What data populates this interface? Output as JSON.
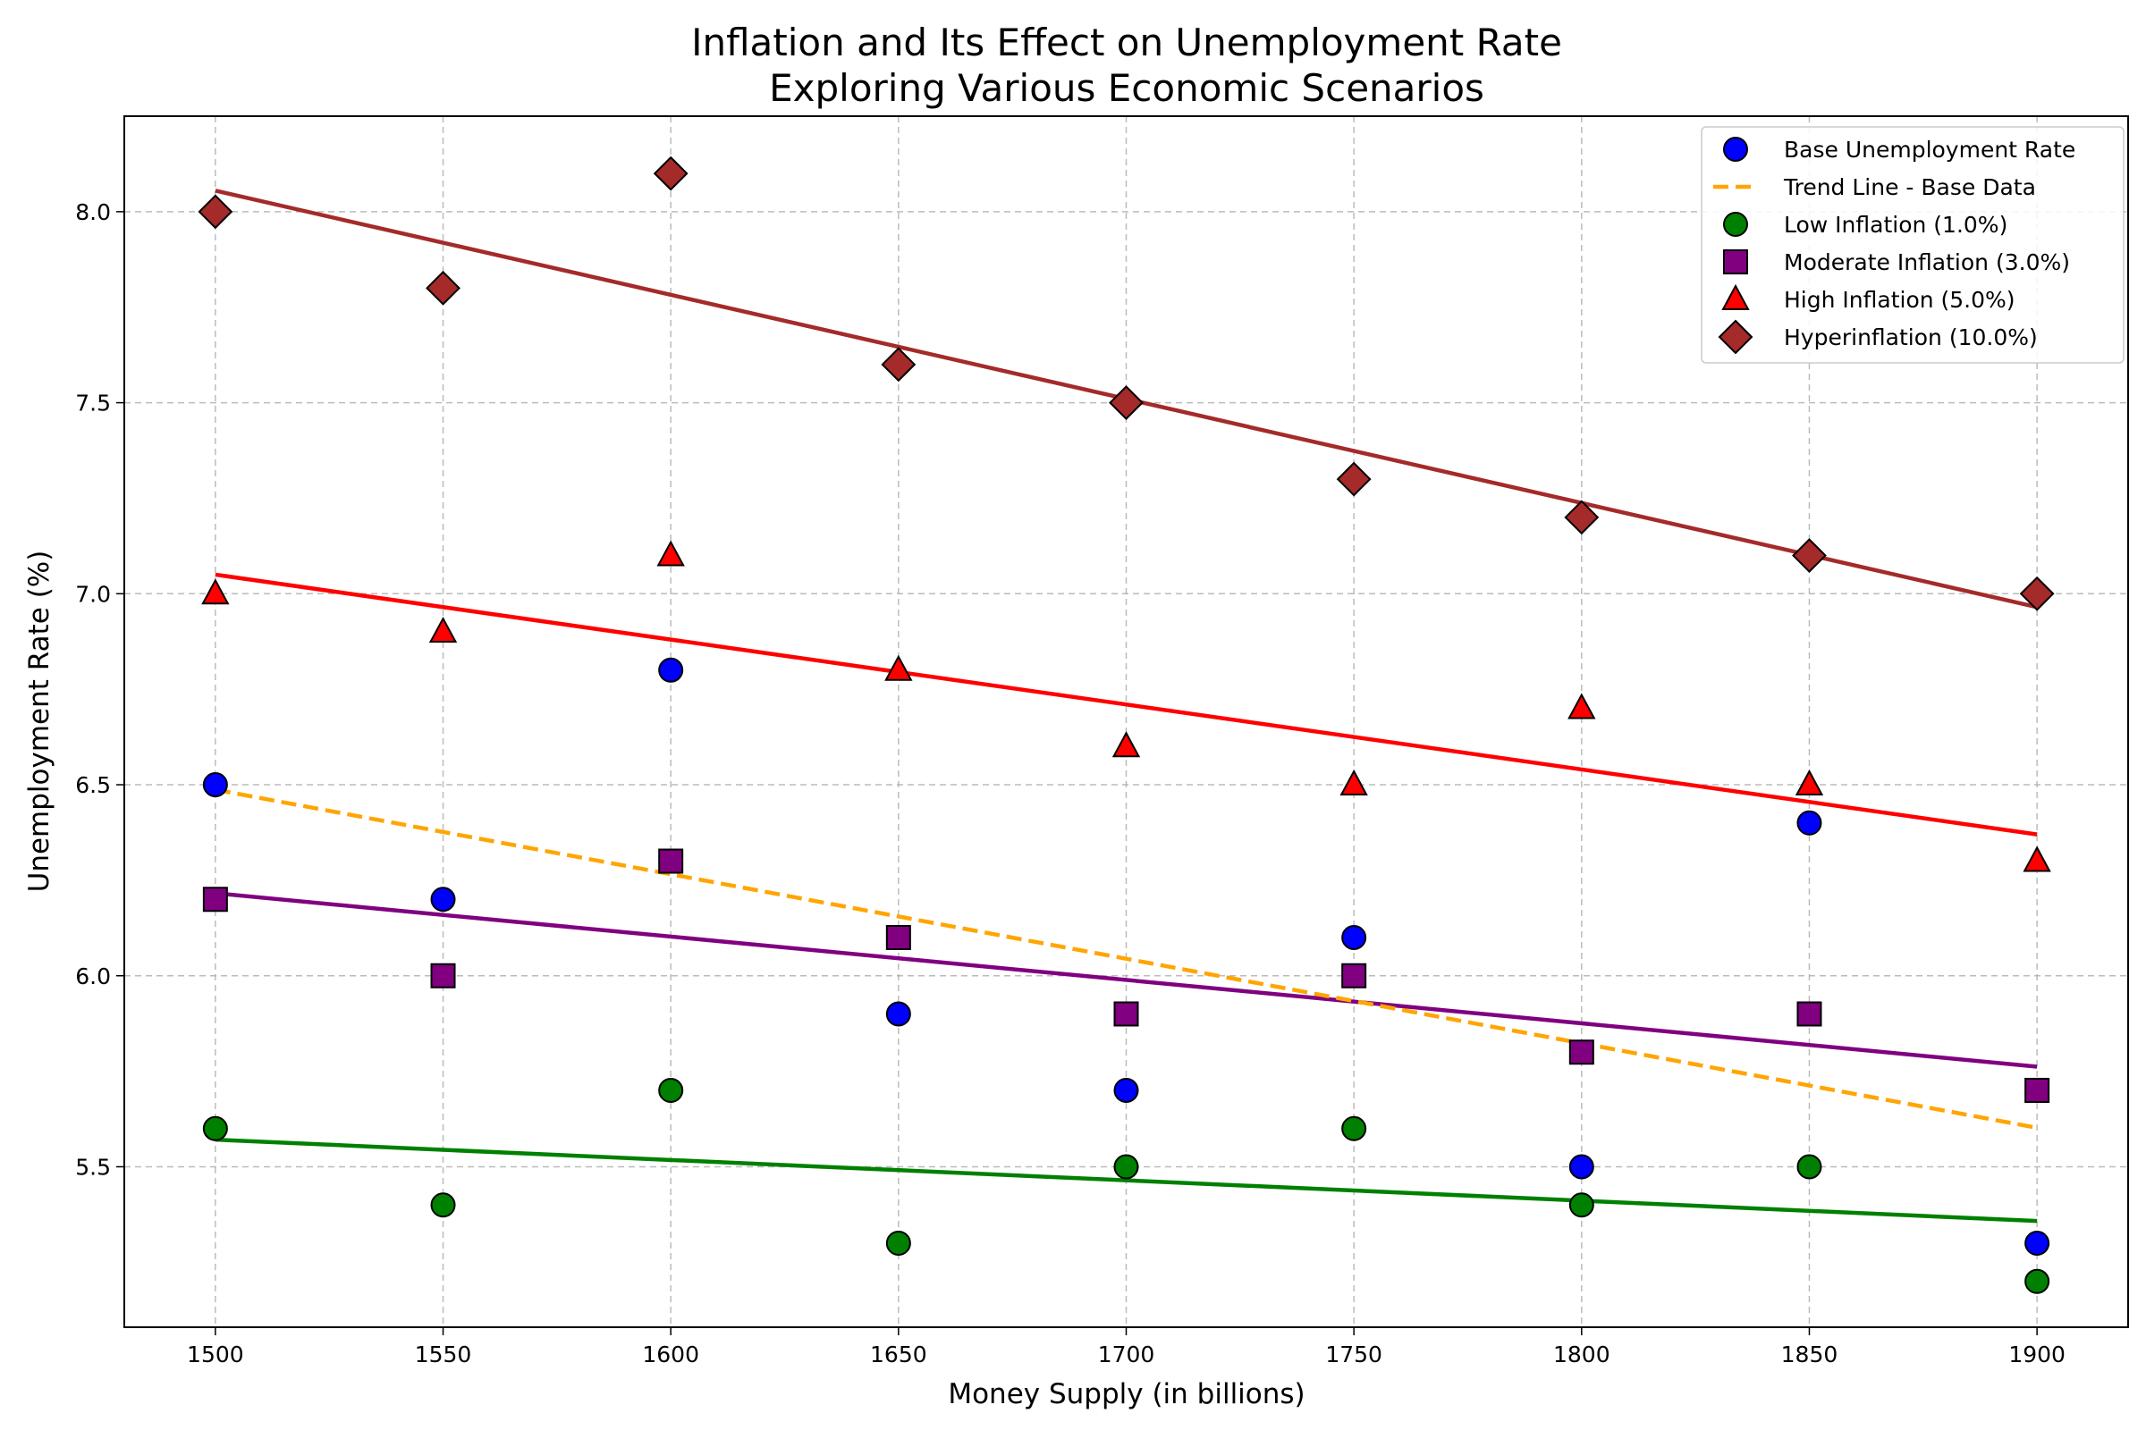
{
  "chart_data": {
    "type": "scatter",
    "title": "Inflation and Its Effect on Unemployment Rate",
    "subtitle": "Exploring Various Economic Scenarios",
    "xlabel": "Money Supply (in billions)",
    "ylabel": "Unemployment Rate (%)",
    "xlim": [
      1480,
      1920
    ],
    "ylim": [
      5.08,
      8.25
    ],
    "xticks": [
      1500,
      1550,
      1600,
      1650,
      1700,
      1750,
      1800,
      1850,
      1900
    ],
    "yticks": [
      5.5,
      6.0,
      6.5,
      7.0,
      7.5,
      8.0
    ],
    "ytick_labels": [
      "5.5",
      "6.0",
      "6.5",
      "7.0",
      "7.5",
      "8.0"
    ],
    "grid": true,
    "legend_position": "upper right",
    "x": [
      1500,
      1550,
      1600,
      1650,
      1700,
      1750,
      1800,
      1850,
      1900
    ],
    "series": [
      {
        "name": "Base Unemployment Rate",
        "marker": "circle",
        "color": "#0000ff",
        "values": [
          6.5,
          6.2,
          6.8,
          5.9,
          5.7,
          6.1,
          5.5,
          6.4,
          5.3
        ]
      },
      {
        "name": "Low Inflation (1.0%)",
        "marker": "circle",
        "color": "#008000",
        "values": [
          5.6,
          5.4,
          5.7,
          5.3,
          5.5,
          5.6,
          5.4,
          5.5,
          5.2
        ],
        "fit_line": [
          5.571,
          5.358
        ]
      },
      {
        "name": "Moderate Inflation (3.0%)",
        "marker": "square",
        "color": "#800080",
        "values": [
          6.2,
          6.0,
          6.3,
          6.1,
          5.9,
          6.0,
          5.8,
          5.9,
          5.7
        ],
        "fit_line": [
          6.216,
          5.762
        ]
      },
      {
        "name": "High Inflation (5.0%)",
        "marker": "triangle",
        "color": "#ff0000",
        "values": [
          7.0,
          6.9,
          7.1,
          6.8,
          6.6,
          6.5,
          6.7,
          6.5,
          6.3
        ],
        "fit_line": [
          7.05,
          6.37
        ]
      },
      {
        "name": "Hyperinflation (10.0%)",
        "marker": "diamond",
        "color": "#a52a2a",
        "values": [
          8.0,
          7.8,
          8.1,
          7.6,
          7.5,
          7.3,
          7.2,
          7.1,
          7.0
        ],
        "fit_line": [
          8.055,
          6.965
        ]
      }
    ],
    "trend_line": {
      "name": "Trend Line - Base Data",
      "color": "#ffa500",
      "style": "dashed",
      "x": [
        1500,
        1900
      ],
      "values": [
        6.487,
        5.602
      ]
    },
    "legend": [
      {
        "label": "Base Unemployment Rate",
        "marker": "circle",
        "color": "#0000ff"
      },
      {
        "label": "Trend Line - Base Data",
        "marker": "dashed-line",
        "color": "#ffa500"
      },
      {
        "label": "Low Inflation (1.0%)",
        "marker": "circle",
        "color": "#008000"
      },
      {
        "label": "Moderate Inflation (3.0%)",
        "marker": "square",
        "color": "#800080"
      },
      {
        "label": "High Inflation (5.0%)",
        "marker": "triangle",
        "color": "#ff0000"
      },
      {
        "label": "Hyperinflation (10.0%)",
        "marker": "diamond",
        "color": "#a52a2a"
      }
    ]
  }
}
